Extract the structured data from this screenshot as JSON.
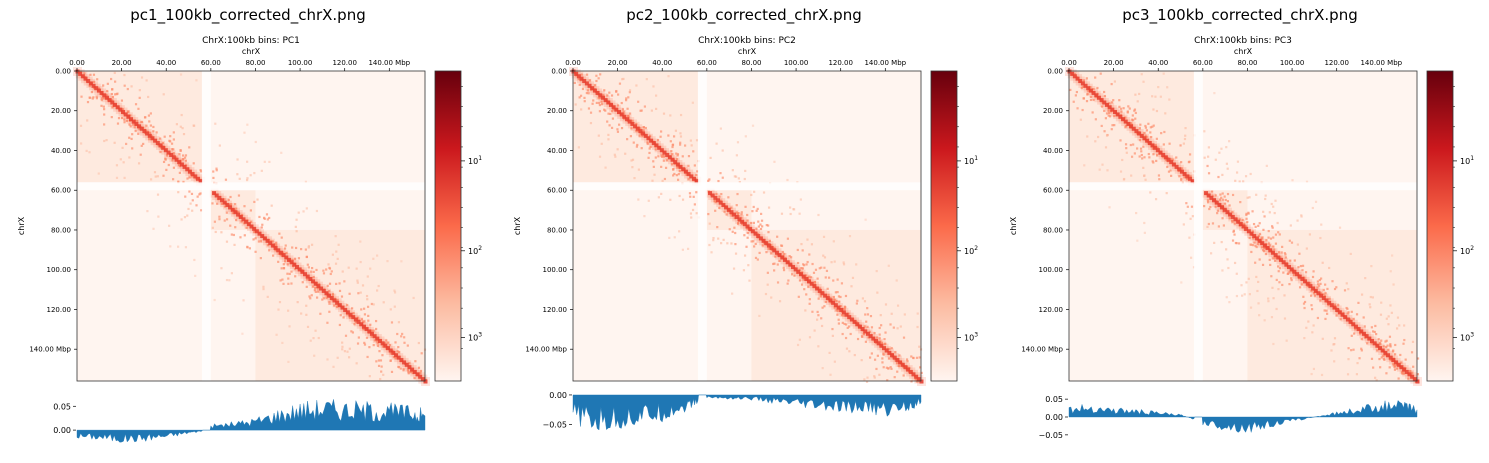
{
  "panels": [
    {
      "file_title": "pc1_100kb_corrected_chrX.png",
      "matrix_title": "ChrX:100kb bins: PC1",
      "axis_label": "chrX",
      "track_ticks": [
        "0.05",
        "0.00"
      ]
    },
    {
      "file_title": "pc2_100kb_corrected_chrX.png",
      "matrix_title": "ChrX:100kb bins: PC2",
      "axis_label": "chrX",
      "track_ticks": [
        "0.00",
        "−0.05"
      ]
    },
    {
      "file_title": "pc3_100kb_corrected_chrX.png",
      "matrix_title": "ChrX:100kb bins: PC3",
      "axis_label": "chrX",
      "track_ticks": [
        "0.05",
        "0.00",
        "−0.05"
      ]
    }
  ],
  "chart_data": [
    {
      "type": "heatmap",
      "title": "ChrX:100kb bins: PC1",
      "xlabel": "chrX",
      "ylabel": "chrX",
      "x_ticks": [
        "0.00",
        "20.00",
        "40.00",
        "60.00",
        "80.00",
        "100.00",
        "120.00",
        "140.00 Mbp"
      ],
      "y_ticks": [
        "0.00",
        "20.00",
        "40.00",
        "60.00",
        "80.00",
        "100.00",
        "120.00",
        "140.00  Mbp"
      ],
      "xlim": [
        0,
        156
      ],
      "colorbar": {
        "scale": "log",
        "ticks": [
          "10^1",
          "10^2",
          "10^3"
        ],
        "colormap": "Reds"
      },
      "track": {
        "type": "area",
        "ylim": [
          -0.025,
          0.08
        ],
        "y_ticks": [
          0.05,
          0.0
        ],
        "x": [
          0,
          10,
          20,
          30,
          40,
          50,
          56,
          60,
          70,
          80,
          90,
          100,
          110,
          120,
          130,
          140,
          150,
          156
        ],
        "values": [
          -0.012,
          -0.014,
          -0.018,
          -0.016,
          -0.012,
          -0.005,
          -0.002,
          0.008,
          0.012,
          0.018,
          0.03,
          0.04,
          0.045,
          0.042,
          0.04,
          0.038,
          0.035,
          0.03
        ],
        "color": "#1f77b4"
      }
    },
    {
      "type": "heatmap",
      "title": "ChrX:100kb bins: PC2",
      "xlabel": "chrX",
      "ylabel": "chrX",
      "x_ticks": [
        "0.00",
        "20.00",
        "40.00",
        "60.00",
        "80.00",
        "100.00",
        "120.00",
        "140.00 Mbp"
      ],
      "y_ticks": [
        "0.00",
        "20.00",
        "40.00",
        "60.00",
        "80.00",
        "100.00",
        "120.00",
        "140.00  Mbp"
      ],
      "xlim": [
        0,
        156
      ],
      "colorbar": {
        "scale": "log",
        "ticks": [
          "10^1",
          "10^2",
          "10^3"
        ],
        "colormap": "Reds"
      },
      "track": {
        "type": "area",
        "ylim": [
          -0.08,
          0.005
        ],
        "y_ticks": [
          0.0,
          -0.05
        ],
        "x": [
          0,
          10,
          20,
          30,
          40,
          50,
          56,
          60,
          70,
          80,
          90,
          100,
          110,
          120,
          130,
          140,
          150,
          156
        ],
        "values": [
          -0.03,
          -0.045,
          -0.04,
          -0.035,
          -0.03,
          -0.02,
          -0.01,
          -0.004,
          -0.005,
          -0.006,
          -0.01,
          -0.015,
          -0.018,
          -0.022,
          -0.02,
          -0.025,
          -0.018,
          -0.012
        ],
        "color": "#1f77b4"
      }
    },
    {
      "type": "heatmap",
      "title": "ChrX:100kb bins: PC3",
      "xlabel": "chrX",
      "ylabel": "chrX",
      "x_ticks": [
        "0.00",
        "20.00",
        "40.00",
        "60.00",
        "80.00",
        "100.00",
        "120.00",
        "140.00 Mbp"
      ],
      "y_ticks": [
        "0.00",
        "20.00",
        "40.00",
        "60.00",
        "80.00",
        "100.00",
        "120.00",
        "140.00  Mbp"
      ],
      "xlim": [
        0,
        156
      ],
      "colorbar": {
        "scale": "log",
        "ticks": [
          "10^1",
          "10^2",
          "10^3"
        ],
        "colormap": "Reds"
      },
      "track": {
        "type": "area",
        "ylim": [
          -0.07,
          0.07
        ],
        "y_ticks": [
          0.05,
          0.0,
          -0.05
        ],
        "x": [
          0,
          10,
          20,
          30,
          40,
          50,
          56,
          60,
          70,
          80,
          90,
          100,
          110,
          120,
          130,
          140,
          150,
          156
        ],
        "values": [
          0.02,
          0.025,
          0.018,
          0.015,
          0.01,
          0.005,
          -0.005,
          -0.015,
          -0.025,
          -0.03,
          -0.02,
          -0.01,
          0.0,
          0.01,
          0.02,
          0.03,
          0.03,
          0.02
        ],
        "color": "#1f77b4"
      }
    }
  ]
}
